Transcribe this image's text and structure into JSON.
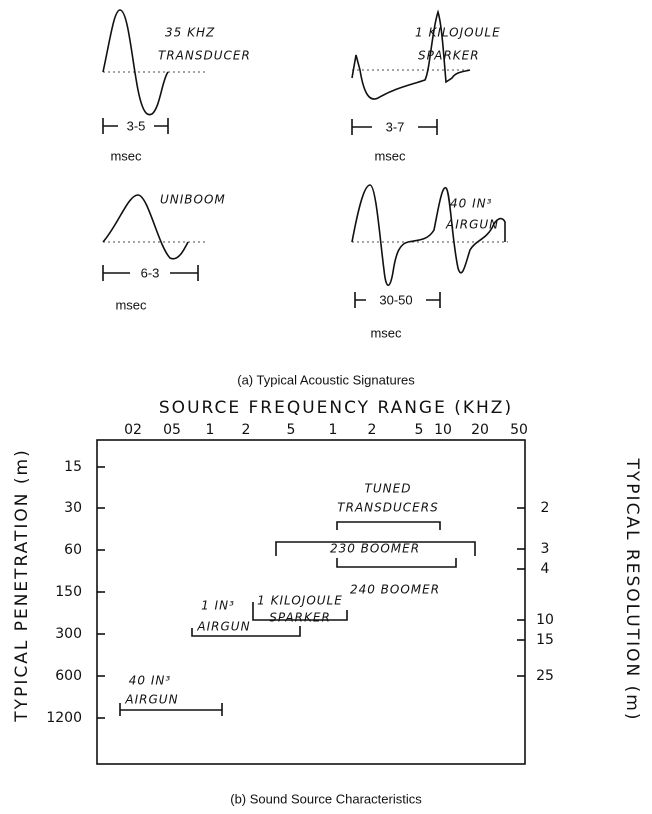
{
  "signatures": [
    {
      "label": [
        "35 KHZ",
        "TRANSDUCER"
      ],
      "duration": "3-5",
      "unit": "msec"
    },
    {
      "label": [
        "1 KILOJOULE",
        "SPARKER"
      ],
      "duration": "3-7",
      "unit": "msec"
    },
    {
      "label": [
        "UNIBOOM"
      ],
      "duration": "6-3",
      "unit": "msec"
    },
    {
      "label": [
        "40 IN³",
        "AIRGUN"
      ],
      "duration": "30-50",
      "unit": "msec"
    }
  ],
  "caption_a": "(a) Typical Acoustic Signatures",
  "chart": {
    "x_axis_title": "SOURCE FREQUENCY RANGE (KHZ)",
    "x_ticks": [
      "02",
      "05",
      "1",
      "2",
      "5",
      "1",
      "2",
      "5",
      "10",
      "20",
      "50"
    ],
    "y_axis_title": "TYPICAL PENETRATION (m)",
    "y_ticks": [
      "15",
      "30",
      "60",
      "150",
      "300",
      "600",
      "1200"
    ],
    "y2_axis_title": "TYPICAL RESOLUTION (m)",
    "y2_ticks": [
      "2",
      "3",
      "4",
      "10",
      "15",
      "25"
    ],
    "sources": [
      {
        "label": [
          "TUNED",
          "TRANSDUCERS"
        ]
      },
      {
        "label": [
          "230 BOOMER"
        ]
      },
      {
        "label": [
          "240 BOOMER"
        ]
      },
      {
        "label": [
          "1 KILOJOULE",
          "SPARKER"
        ]
      },
      {
        "label": [
          "1 IN³",
          "AIRGUN"
        ]
      },
      {
        "label": [
          "40 IN³",
          "AIRGUN"
        ]
      }
    ]
  },
  "caption_b": "(b) Sound Source Characteristics"
}
